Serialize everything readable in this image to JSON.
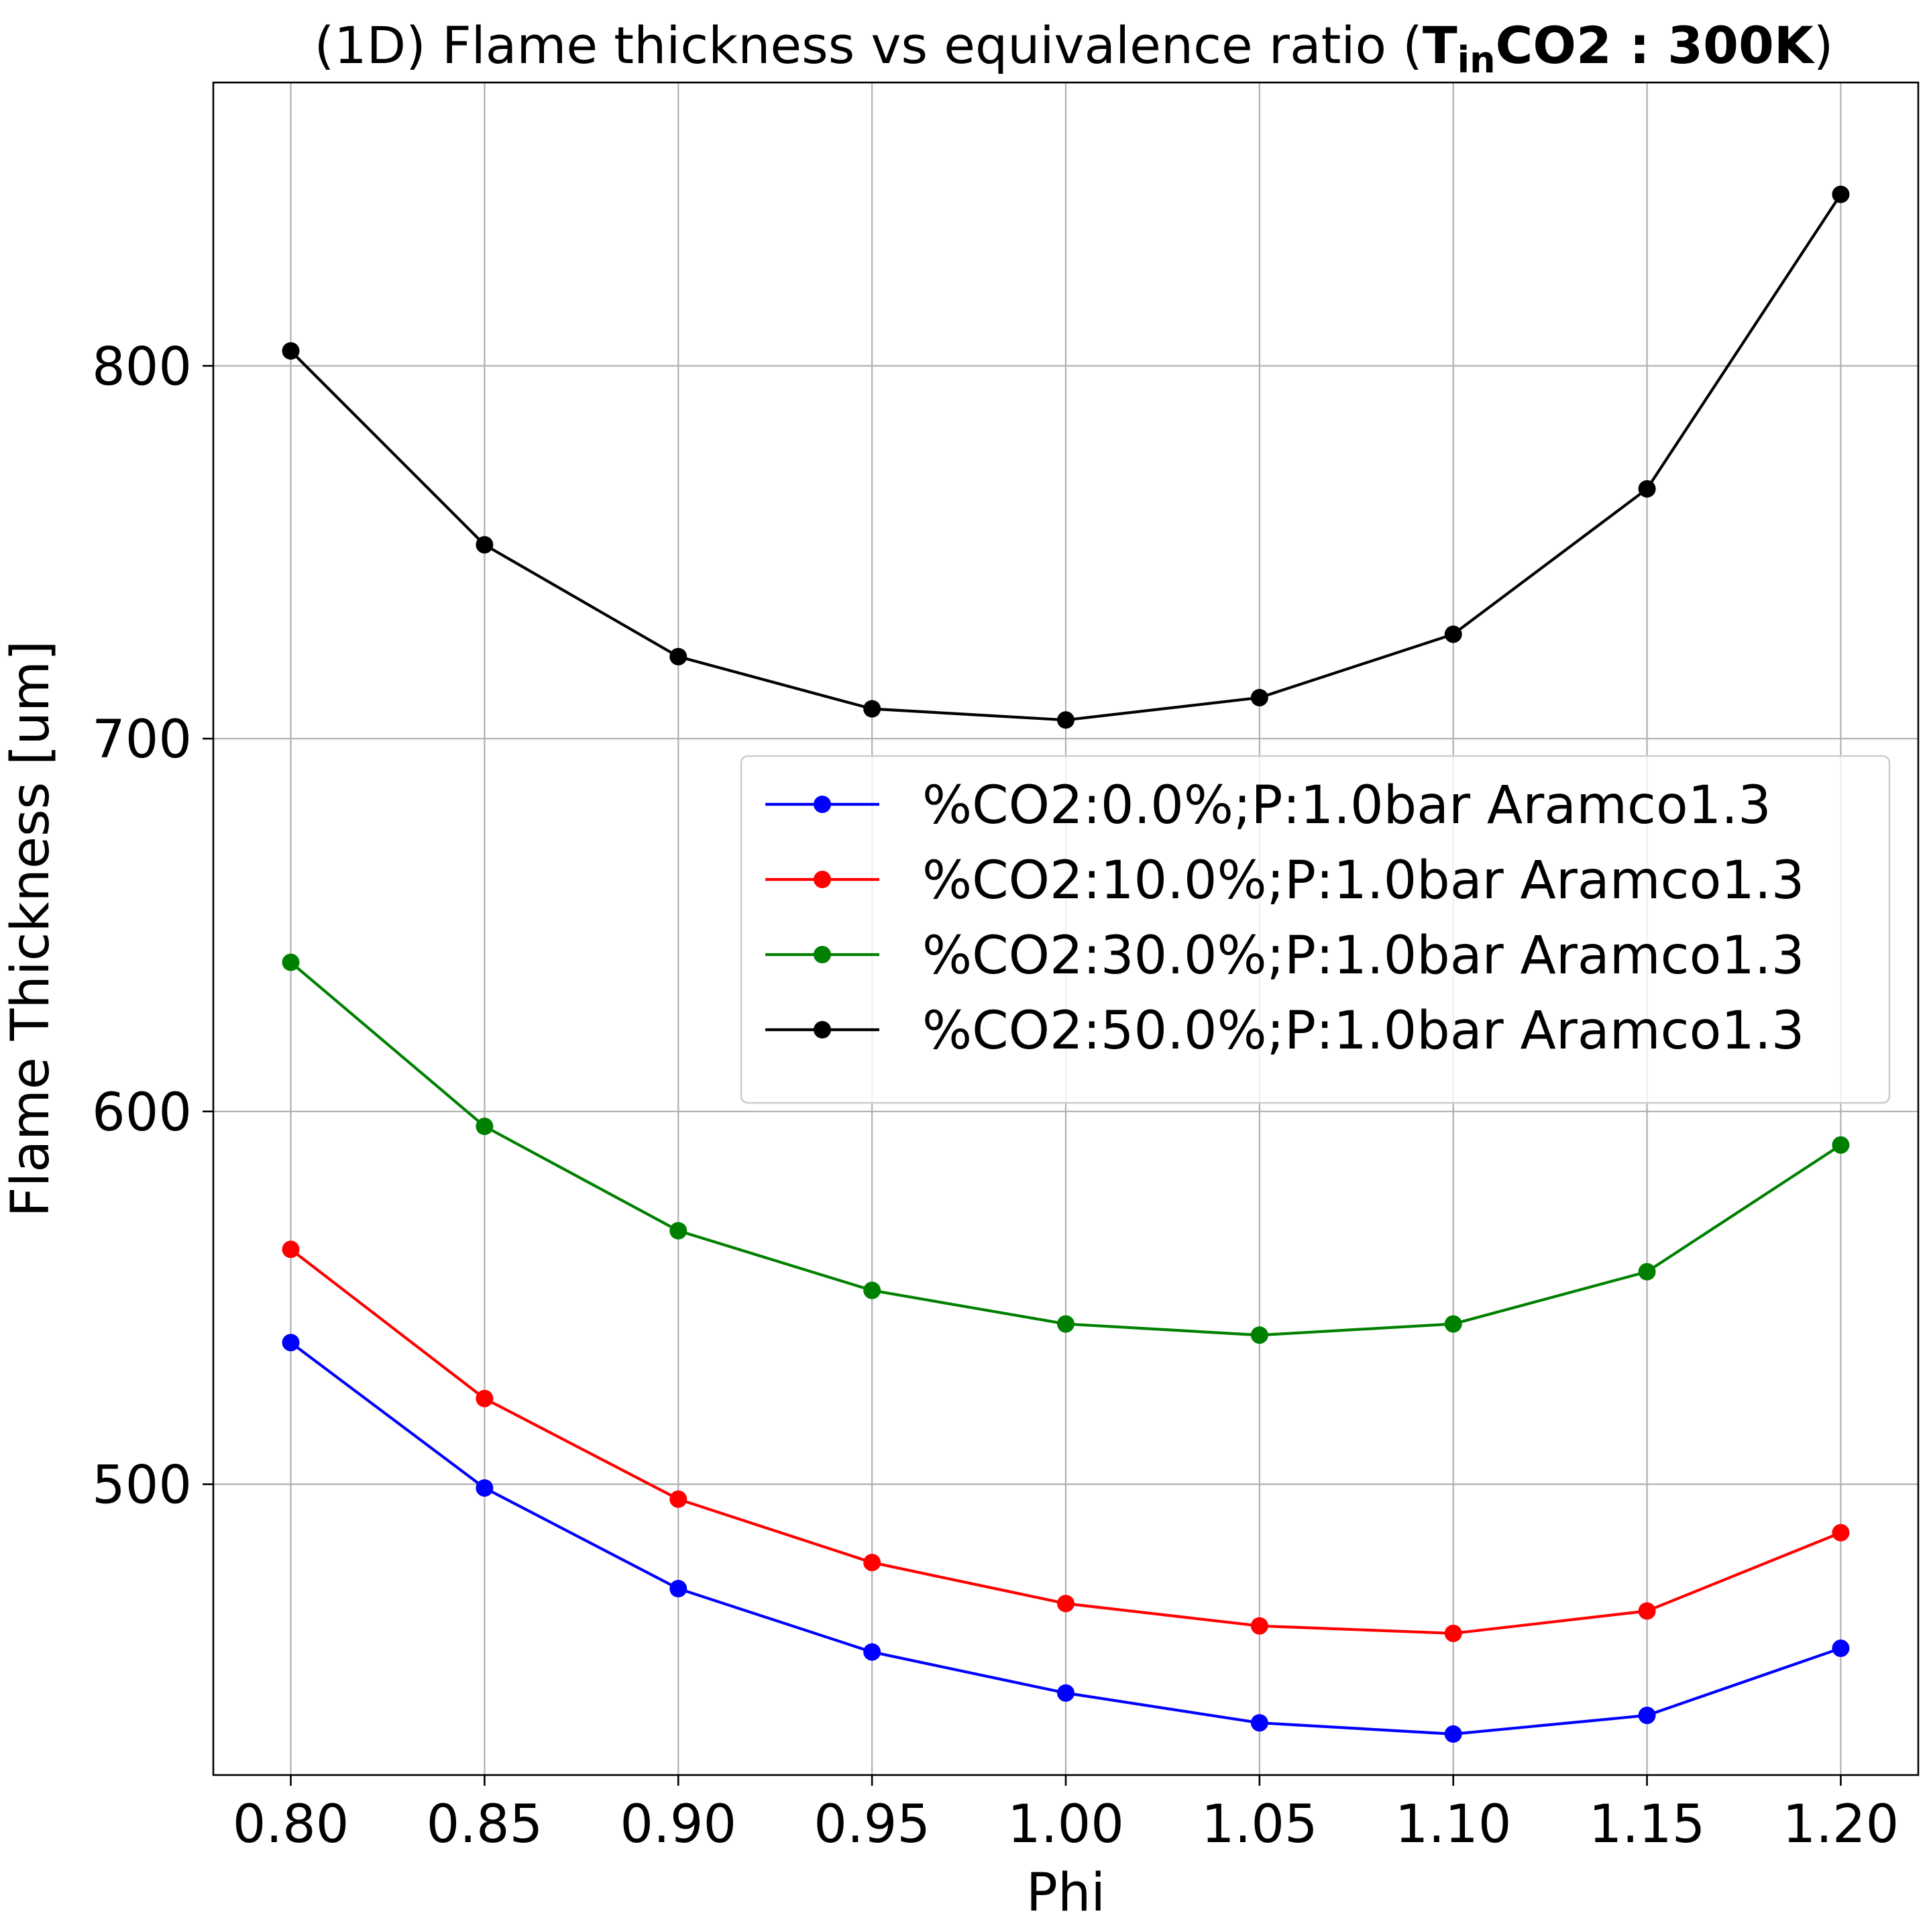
{
  "chart_data": {
    "type": "line",
    "title": {
      "prefix": "(1D) Flame thickness vs equivalence ratio (",
      "math_main": "T",
      "math_sub": "in",
      "math_rest": "CO2 : 300K",
      "suffix": ")"
    },
    "xlabel": "Phi",
    "ylabel": "Flame Thickness [um]",
    "xlim": [
      0.78,
      1.22
    ],
    "ylim": [
      422,
      876
    ],
    "xticks": [
      0.8,
      0.85,
      0.9,
      0.95,
      1.0,
      1.05,
      1.1,
      1.15,
      1.2
    ],
    "xtick_labels": [
      "0.80",
      "0.85",
      "0.90",
      "0.95",
      "1.00",
      "1.05",
      "1.10",
      "1.15",
      "1.20"
    ],
    "yticks": [
      500,
      600,
      700,
      800
    ],
    "ytick_labels": [
      "500",
      "600",
      "700",
      "800"
    ],
    "grid": true,
    "legend_position": "center-right",
    "x": [
      0.8,
      0.85,
      0.9,
      0.95,
      1.0,
      1.05,
      1.1,
      1.15,
      1.2
    ],
    "series": [
      {
        "name": "%CO2:0.0%;P:1.0bar Aramco1.3",
        "color": "#0000ff",
        "values": [
          538,
          499,
          472,
          455,
          444,
          436,
          433,
          438,
          456
        ]
      },
      {
        "name": "%CO2:10.0%;P:1.0bar Aramco1.3",
        "color": "#ff0000",
        "values": [
          563,
          523,
          496,
          479,
          468,
          462,
          460,
          466,
          487
        ]
      },
      {
        "name": "%CO2:30.0%;P:1.0bar Aramco1.3",
        "color": "#008000",
        "values": [
          640,
          596,
          568,
          552,
          543,
          540,
          543,
          557,
          591
        ]
      },
      {
        "name": "%CO2:50.0%;P:1.0bar Aramco1.3",
        "color": "#000000",
        "values": [
          804,
          752,
          722,
          708,
          705,
          711,
          728,
          767,
          846
        ]
      }
    ]
  }
}
